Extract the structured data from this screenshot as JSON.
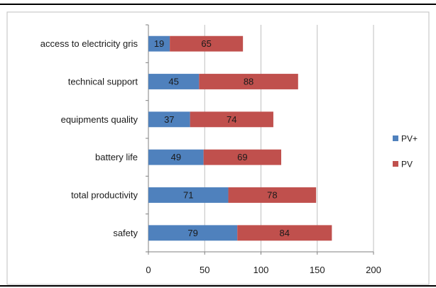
{
  "chart_data": {
    "type": "bar",
    "orientation": "horizontal",
    "stacked": true,
    "categories": [
      "access to electricity gris",
      "technical support",
      "equipments quality",
      "battery life",
      "total productivity",
      "safety"
    ],
    "series": [
      {
        "name": "PV+",
        "color": "#4f81bd",
        "values": [
          19,
          45,
          37,
          49,
          71,
          79
        ]
      },
      {
        "name": "PV",
        "color": "#c0504d",
        "values": [
          65,
          88,
          74,
          69,
          78,
          84
        ]
      }
    ],
    "xlim": [
      0,
      200
    ],
    "xticks": [
      0,
      50,
      100,
      150,
      200
    ],
    "grid": "vertical",
    "legend": "right",
    "data_labels": true
  }
}
